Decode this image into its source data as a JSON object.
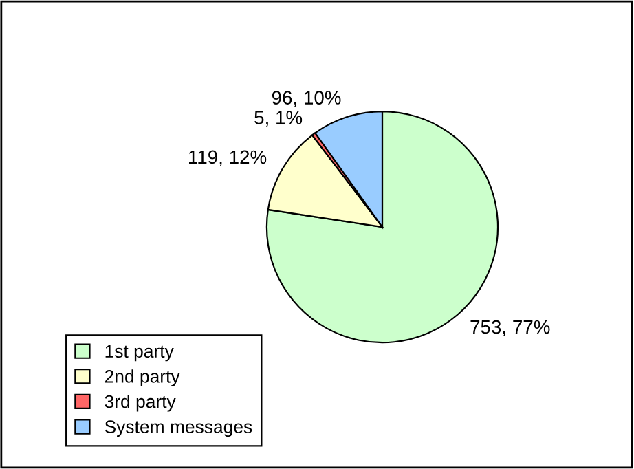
{
  "chart_data": {
    "type": "pie",
    "categories": [
      "1st party",
      "2nd party",
      "3rd party",
      "System messages"
    ],
    "values": [
      753,
      119,
      5,
      96
    ],
    "colors": [
      "#ccffcc",
      "#ffffcc",
      "#ff6666",
      "#99ccff"
    ],
    "value_labels": [
      "753, 77%",
      "119, 12%",
      "5, 1%",
      "96, 10%"
    ],
    "legend": "bottom left"
  }
}
